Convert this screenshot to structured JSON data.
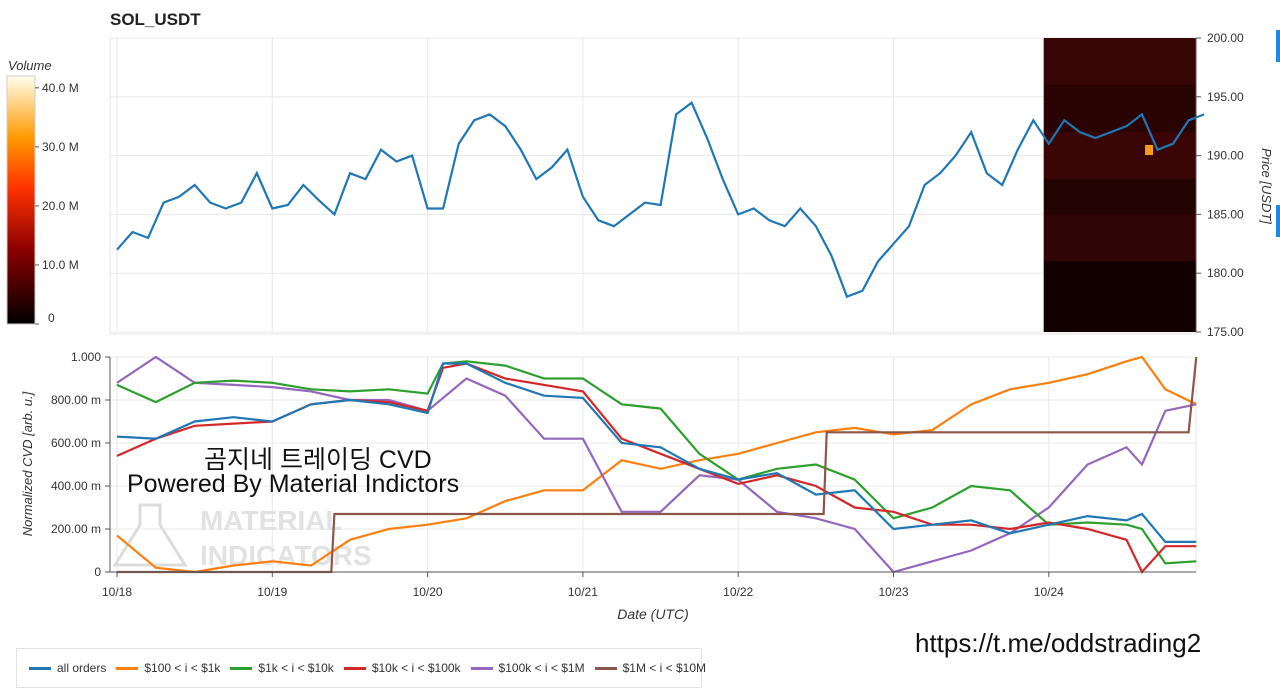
{
  "title": "SOL_USDT",
  "watermark": {
    "line1": "곰지네 트레이딩 CVD",
    "line2": "Powered By Material Indictors",
    "logo_text_1": "MATERIAL",
    "logo_text_2": "INDICATORS"
  },
  "link": "https://t.me/oddstrading2",
  "colors": {
    "all_orders": "#1f77b4",
    "b100_1k": "#ff7f0e",
    "b1k_10k": "#2ca02c",
    "b10k_100k": "#d62728",
    "b100k_1m": "#9467bd",
    "b1m_10m": "#8c564b"
  },
  "chart_data": [
    {
      "type": "line",
      "title": "SOL_USDT",
      "ylabel": "Price [USDT]",
      "ylim": [
        175,
        200
      ],
      "yticks": [
        "200.00",
        "195.00",
        "190.00",
        "185.00",
        "180.00",
        "175.00"
      ],
      "colorbar": {
        "label": "Volume",
        "ticks": [
          "40.0 M",
          "30.0 M",
          "20.0 M",
          "10.0 M",
          "0"
        ],
        "range": [
          0,
          42
        ]
      },
      "heatmap_region": {
        "x_start": 6.0,
        "x_end": 7.0
      },
      "series": [
        {
          "x": [
            0.0,
            0.1,
            0.2,
            0.3,
            0.4,
            0.5,
            0.6,
            0.7,
            0.8,
            0.9,
            1.0,
            1.1,
            1.2,
            1.3,
            1.4,
            1.5,
            1.6,
            1.7,
            1.8,
            1.9,
            2.0,
            2.1,
            2.2,
            2.3,
            2.4,
            2.5,
            2.6,
            2.7,
            2.8,
            2.9,
            3.0,
            3.1,
            3.2,
            3.3,
            3.4,
            3.5,
            3.6,
            3.7,
            3.8,
            3.9,
            4.0,
            4.1,
            4.2,
            4.3,
            4.4,
            4.5,
            4.6,
            4.7,
            4.8,
            4.9,
            5.0,
            5.1,
            5.2,
            5.3,
            5.4,
            5.5,
            5.6,
            5.7,
            5.8,
            5.9,
            6.0,
            6.1,
            6.2,
            6.3,
            6.4,
            6.5,
            6.6,
            6.7,
            6.8,
            6.9,
            7.0
          ],
          "values": [
            182.0,
            183.5,
            183.0,
            186.0,
            186.5,
            187.5,
            186.0,
            185.5,
            186.0,
            188.5,
            185.5,
            185.8,
            187.5,
            186.2,
            185.0,
            188.5,
            188.0,
            190.5,
            189.5,
            190.0,
            185.5,
            185.5,
            191.0,
            193.0,
            193.5,
            192.5,
            190.5,
            188.0,
            189.0,
            190.5,
            186.5,
            184.5,
            184.0,
            185.0,
            186.0,
            185.8,
            193.5,
            194.5,
            191.5,
            188.0,
            185.0,
            185.5,
            184.5,
            184.0,
            185.5,
            184.0,
            181.5,
            178.0,
            178.5,
            181.0,
            182.5,
            184.0,
            187.5,
            188.5,
            190.0,
            192.0,
            188.5,
            187.5,
            190.5,
            193.0,
            191.0,
            193.0,
            192.0,
            191.5,
            192.0,
            192.5,
            193.5,
            190.5,
            191.0,
            193.0,
            193.5
          ]
        }
      ]
    },
    {
      "type": "line",
      "xlabel": "Date (UTC)",
      "ylabel": "Normalized CVD [arb. u.]",
      "ylim": [
        0,
        1.0
      ],
      "yticks": [
        "1.000",
        "800.00 m",
        "600.00 m",
        "400.00 m",
        "200.00 m",
        "0"
      ],
      "categories": [
        "10/18",
        "10/19",
        "10/20",
        "10/21",
        "10/22",
        "10/23",
        "10/24"
      ],
      "x_range": [
        -0.05,
        6.95
      ],
      "series": [
        {
          "name": "all orders",
          "color_key": "all_orders",
          "x": [
            0.0,
            0.25,
            0.5,
            0.75,
            1.0,
            1.25,
            1.5,
            1.75,
            2.0,
            2.1,
            2.25,
            2.5,
            2.75,
            3.0,
            3.25,
            3.5,
            3.75,
            4.0,
            4.25,
            4.5,
            4.75,
            5.0,
            5.25,
            5.5,
            5.75,
            6.0,
            6.25,
            6.5,
            6.6,
            6.75,
            6.95
          ],
          "values": [
            0.63,
            0.62,
            0.7,
            0.72,
            0.7,
            0.78,
            0.8,
            0.78,
            0.74,
            0.97,
            0.97,
            0.88,
            0.82,
            0.81,
            0.6,
            0.58,
            0.48,
            0.43,
            0.46,
            0.36,
            0.38,
            0.2,
            0.22,
            0.24,
            0.18,
            0.22,
            0.26,
            0.24,
            0.27,
            0.14,
            0.14
          ]
        },
        {
          "name": "$100 < i < $1k",
          "color_key": "b100_1k",
          "x": [
            0.0,
            0.25,
            0.5,
            0.75,
            1.0,
            1.25,
            1.5,
            1.75,
            2.0,
            2.25,
            2.5,
            2.75,
            3.0,
            3.25,
            3.5,
            3.75,
            4.0,
            4.25,
            4.5,
            4.75,
            5.0,
            5.25,
            5.5,
            5.75,
            6.0,
            6.25,
            6.5,
            6.6,
            6.75,
            6.95
          ],
          "values": [
            0.17,
            0.02,
            0.0,
            0.03,
            0.05,
            0.03,
            0.15,
            0.2,
            0.22,
            0.25,
            0.33,
            0.38,
            0.38,
            0.52,
            0.48,
            0.52,
            0.55,
            0.6,
            0.65,
            0.67,
            0.64,
            0.66,
            0.78,
            0.85,
            0.88,
            0.92,
            0.98,
            1.0,
            0.85,
            0.78
          ]
        },
        {
          "name": "$1k < i < $10k",
          "color_key": "b1k_10k",
          "x": [
            0.0,
            0.25,
            0.5,
            0.75,
            1.0,
            1.25,
            1.5,
            1.75,
            2.0,
            2.1,
            2.25,
            2.5,
            2.75,
            3.0,
            3.25,
            3.5,
            3.75,
            4.0,
            4.25,
            4.5,
            4.75,
            5.0,
            5.25,
            5.5,
            5.75,
            6.0,
            6.25,
            6.5,
            6.6,
            6.75,
            6.95
          ],
          "values": [
            0.87,
            0.79,
            0.88,
            0.89,
            0.88,
            0.85,
            0.84,
            0.85,
            0.83,
            0.97,
            0.98,
            0.96,
            0.9,
            0.9,
            0.78,
            0.76,
            0.55,
            0.43,
            0.48,
            0.5,
            0.43,
            0.25,
            0.3,
            0.4,
            0.38,
            0.22,
            0.23,
            0.22,
            0.2,
            0.04,
            0.05
          ]
        },
        {
          "name": "$10k < i < $100k",
          "color_key": "b10k_100k",
          "x": [
            0.0,
            0.25,
            0.5,
            0.75,
            1.0,
            1.25,
            1.5,
            1.75,
            2.0,
            2.1,
            2.25,
            2.5,
            2.75,
            3.0,
            3.25,
            3.5,
            3.75,
            4.0,
            4.25,
            4.5,
            4.75,
            5.0,
            5.25,
            5.5,
            5.75,
            6.0,
            6.25,
            6.5,
            6.6,
            6.75,
            6.95
          ],
          "values": [
            0.54,
            0.62,
            0.68,
            0.69,
            0.7,
            0.78,
            0.8,
            0.79,
            0.75,
            0.95,
            0.97,
            0.9,
            0.87,
            0.84,
            0.62,
            0.55,
            0.48,
            0.41,
            0.45,
            0.4,
            0.3,
            0.28,
            0.22,
            0.22,
            0.2,
            0.23,
            0.2,
            0.15,
            0.0,
            0.12,
            0.12
          ]
        },
        {
          "name": "$100k < i < $1M",
          "color_key": "b100k_1m",
          "x": [
            0.0,
            0.25,
            0.5,
            0.75,
            1.0,
            1.25,
            1.5,
            1.75,
            2.0,
            2.25,
            2.5,
            2.75,
            3.0,
            3.25,
            3.5,
            3.75,
            4.0,
            4.25,
            4.5,
            4.75,
            5.0,
            5.25,
            5.5,
            5.75,
            6.0,
            6.25,
            6.5,
            6.6,
            6.75,
            6.95
          ],
          "values": [
            0.88,
            1.0,
            0.88,
            0.87,
            0.86,
            0.84,
            0.8,
            0.8,
            0.75,
            0.9,
            0.82,
            0.62,
            0.62,
            0.28,
            0.28,
            0.45,
            0.43,
            0.28,
            0.25,
            0.2,
            0.0,
            0.05,
            0.1,
            0.18,
            0.3,
            0.5,
            0.58,
            0.5,
            0.75,
            0.78
          ]
        },
        {
          "name": "$1M < i < $10M",
          "color_key": "b1m_10m",
          "x": [
            0.0,
            1.38,
            1.4,
            2.55,
            2.56,
            4.55,
            4.57,
            6.9,
            6.95
          ],
          "values": [
            0.0,
            0.0,
            0.27,
            0.27,
            0.27,
            0.27,
            0.65,
            0.65,
            1.0
          ]
        }
      ]
    }
  ]
}
